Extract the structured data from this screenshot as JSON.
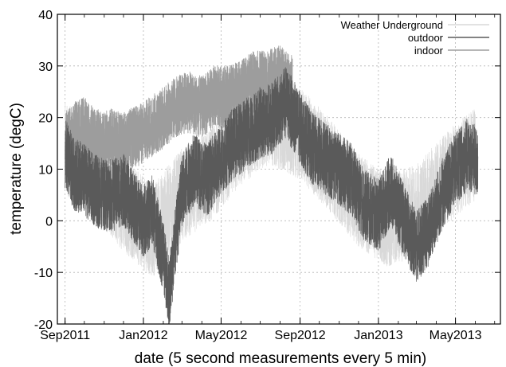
{
  "chart_data": {
    "type": "line",
    "xlabel": "date (5 second measurements every 5 min)",
    "ylabel": "temperature (degC)",
    "x_ticks": [
      "Sep2011",
      "Jan2012",
      "May2012",
      "Sep2012",
      "Jan2013",
      "May2013"
    ],
    "ylim": [
      -20,
      40
    ],
    "y_ticks": [
      -20,
      -10,
      0,
      10,
      20,
      30,
      40
    ],
    "xlim": [
      "2011-08-20",
      "2013-07-10"
    ],
    "grid": true,
    "legend_position": "top-right",
    "series": [
      {
        "name": "Weather Underground",
        "color": "#d9d9d9",
        "style": "line",
        "x": [
          "2011-09-01",
          "2011-10-15",
          "2011-12-01",
          "2012-01-15",
          "2012-03-01",
          "2012-04-15",
          "2012-06-01",
          "2012-07-15",
          "2012-09-01",
          "2012-10-15",
          "2012-12-01",
          "2013-01-15",
          "2013-03-01",
          "2013-04-15",
          "2013-06-01"
        ],
        "y": [
          14,
          10,
          3,
          -2,
          5,
          9,
          16,
          20,
          17,
          11,
          4,
          0,
          2,
          8,
          13
        ]
      },
      {
        "name": "outdoor",
        "color": "#5a5a5a",
        "style": "line",
        "x": [
          "2011-09-01",
          "2011-09-15",
          "2011-10-01",
          "2011-10-15",
          "2011-11-01",
          "2011-11-15",
          "2011-12-01",
          "2011-12-15",
          "2012-01-01",
          "2012-01-15",
          "2012-02-01",
          "2012-02-10",
          "2012-03-01",
          "2012-03-20",
          "2012-04-10",
          "2012-05-01",
          "2012-05-20",
          "2012-06-10",
          "2012-07-01",
          "2012-07-20",
          "2012-08-10",
          "2012-09-01",
          "2012-09-20",
          "2012-10-10",
          "2012-11-01",
          "2012-11-20",
          "2012-12-10",
          "2013-01-01",
          "2013-01-20",
          "2013-02-10",
          "2013-03-01",
          "2013-03-20",
          "2013-04-10",
          "2013-05-01",
          "2013-05-20",
          "2013-06-05"
        ],
        "y": [
          13,
          9,
          8,
          6,
          5,
          5,
          6,
          3,
          0,
          2,
          -7,
          -14,
          6,
          10,
          8,
          12,
          15,
          17,
          19,
          20,
          23,
          18,
          14,
          12,
          10,
          8,
          3,
          1,
          6,
          0,
          -5,
          -2,
          5,
          10,
          13,
          11
        ]
      },
      {
        "name": "indoor",
        "color": "#9d9d9d",
        "style": "line",
        "x": [
          "2011-09-01",
          "2011-09-15",
          "2011-10-01",
          "2011-10-15",
          "2011-11-01",
          "2011-11-10",
          "2011-12-01",
          "2011-12-15",
          "2012-01-01",
          "2012-01-10",
          "2012-02-01",
          "2012-02-20",
          "2012-03-10",
          "2012-04-01",
          "2012-04-20",
          "2012-05-10",
          "2012-06-01",
          "2012-06-20",
          "2012-07-10",
          "2012-08-01",
          "2012-08-20"
        ],
        "y": [
          15,
          17,
          18,
          16,
          15,
          16,
          15,
          16,
          17,
          18,
          20,
          22,
          23,
          22,
          24,
          24,
          25,
          27,
          27,
          28,
          26
        ]
      }
    ]
  }
}
